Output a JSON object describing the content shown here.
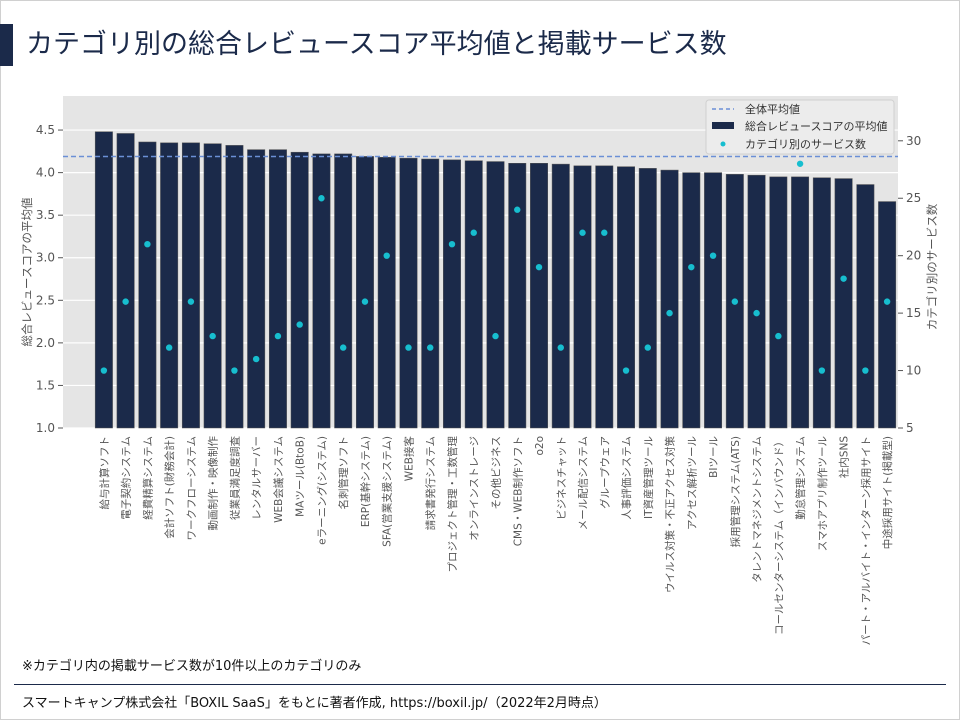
{
  "page": {
    "title": "カテゴリ別の総合レビュースコア平均値と掲載サービス数",
    "note": "※カテゴリ内の掲載サービス数が10件以上のカテゴリのみ",
    "source": "スマートキャンプ株式会社「BOXIL SaaS」をもとに著者作成, https://boxil.jp/（2022年2月時点）"
  },
  "colors": {
    "bar": "#1b2a4a",
    "dot": "#17becf",
    "mean_line": "#6b8fd6",
    "plot_bg": "#e5e5e5",
    "title": "#1b2a4a"
  },
  "chart_data": {
    "type": "bar",
    "title": "",
    "xlabel": "",
    "ylabel": "総合レビュースコアの平均値",
    "y2label": "カテゴリ別のサービス数",
    "ylim": [
      1.0,
      4.9
    ],
    "y2lim": [
      5,
      33.9
    ],
    "yticks": [
      1.0,
      1.5,
      2.0,
      2.5,
      3.0,
      3.5,
      4.0,
      4.5
    ],
    "y2ticks": [
      5,
      10,
      15,
      20,
      25,
      30
    ],
    "grid": true,
    "legend_position": "top-right",
    "mean_line": {
      "name": "全体平均値",
      "value": 4.19
    },
    "categories": [
      "給与計算ソフト",
      "電子契約システム",
      "経費精算システム",
      "会計ソフト(財務会計)",
      "ワークフローシステム",
      "動画制作・映像制作",
      "従業員満足度調査",
      "レンタルサーバー",
      "WEB会議システム",
      "MAツール(BtoB)",
      "eラーニング(システム)",
      "名刺管理ソフト",
      "ERP(基幹システム)",
      "SFA(営業支援システム)",
      "WEB接客",
      "請求書発行システム",
      "プロジェクト管理・工数管理",
      "オンラインストレージ",
      "その他ビジネス",
      "CMS・WEB制作ソフト",
      "o2o",
      "ビジネスチャット",
      "メール配信システム",
      "グループウェア",
      "人事評価システム",
      "IT資産管理ツール",
      "ウイルス対策・不正アクセス対策",
      "アクセス解析ツール",
      "BIツール",
      "採用管理システム(ATS)",
      "タレントマネジメントシステム",
      "コールセンターシステム（インバウンド）",
      "勤怠管理システム",
      "スマホアプリ制作ツール",
      "社内SNS",
      "パート・アルバイト・インターン採用サイト",
      "中途採用サイト(掲載型)"
    ],
    "series": [
      {
        "name": "総合レビュースコアの平均値",
        "type": "bar",
        "axis": "left",
        "values": [
          4.48,
          4.46,
          4.36,
          4.35,
          4.35,
          4.34,
          4.32,
          4.27,
          4.27,
          4.24,
          4.22,
          4.22,
          4.19,
          4.18,
          4.17,
          4.16,
          4.15,
          4.14,
          4.13,
          4.11,
          4.11,
          4.1,
          4.08,
          4.08,
          4.07,
          4.05,
          4.03,
          4.0,
          4.0,
          3.98,
          3.97,
          3.95,
          3.95,
          3.94,
          3.93,
          3.86,
          3.66
        ]
      },
      {
        "name": "カテゴリ別のサービス数",
        "type": "scatter",
        "axis": "right",
        "values": [
          10,
          16,
          21,
          12,
          16,
          13,
          10,
          11,
          13,
          14,
          25,
          12,
          16,
          20,
          12,
          12,
          21,
          22,
          13,
          24,
          19,
          12,
          22,
          22,
          10,
          12,
          15,
          19,
          20,
          16,
          15,
          13,
          28,
          10,
          18,
          10,
          16
        ]
      }
    ]
  }
}
